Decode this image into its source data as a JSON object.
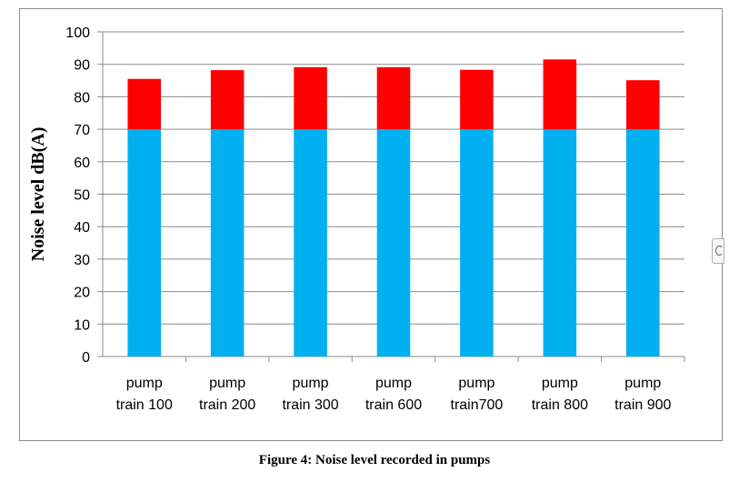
{
  "chart_data": {
    "type": "bar",
    "stacked": true,
    "categories": [
      [
        "pump",
        "train 100"
      ],
      [
        "pump",
        "train 200"
      ],
      [
        "pump",
        "train 300"
      ],
      [
        "pump",
        "train 600"
      ],
      [
        "pump",
        "train700"
      ],
      [
        "pump",
        "train 800"
      ],
      [
        "pump",
        "train 900"
      ]
    ],
    "series": [
      {
        "color": "#00B0F0",
        "values": [
          70,
          70,
          70,
          70,
          70,
          70,
          70
        ]
      },
      {
        "color": "#FF0000",
        "values": [
          15.5,
          18.2,
          19.1,
          19.1,
          18.3,
          21.5,
          15.1
        ]
      }
    ],
    "ylabel": "Noise level  dB(A)",
    "ylim": [
      0,
      100
    ],
    "yticks": [
      0,
      10,
      20,
      30,
      40,
      50,
      60,
      70,
      80,
      90,
      100
    ],
    "grid": true,
    "legend": "none"
  },
  "caption": "Figure 4: Noise level recorded in pumps"
}
